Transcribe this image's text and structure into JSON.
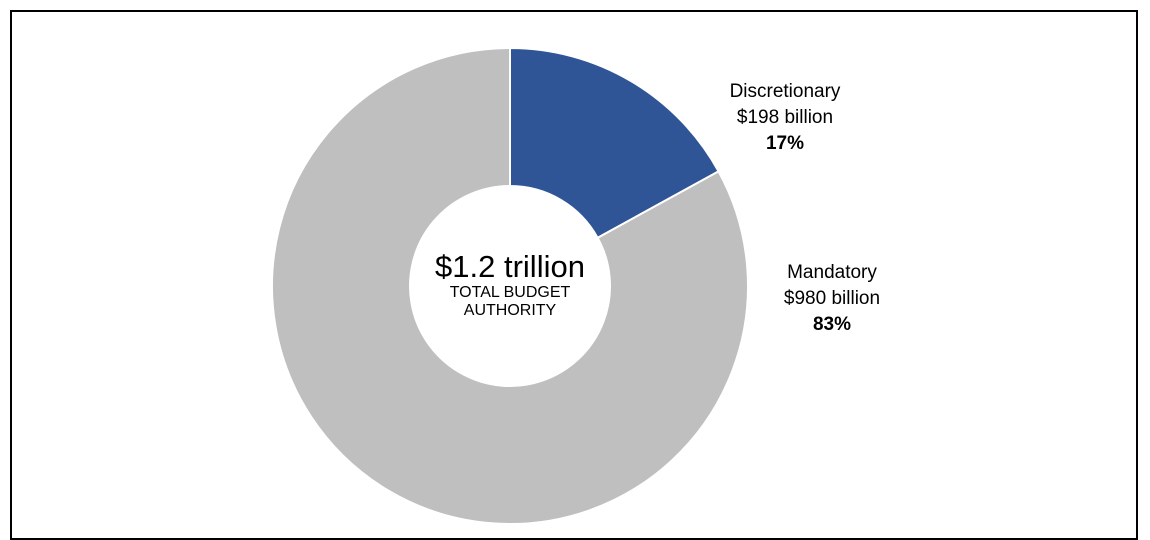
{
  "chart_data": {
    "type": "pie",
    "donut": true,
    "center_total": "$1.2 trillion",
    "center_caption": "TOTAL BUDGET AUTHORITY",
    "slices": [
      {
        "name": "Discretionary",
        "value_text": "$198 billion",
        "value": 198,
        "percent_text": "17%",
        "percent": 17,
        "color": "#2f5597"
      },
      {
        "name": "Mandatory",
        "value_text": "$980 billion",
        "value": 980,
        "percent_text": "83%",
        "percent": 83,
        "color": "#bfbfbf"
      }
    ],
    "units": "billion",
    "legend": "none"
  }
}
